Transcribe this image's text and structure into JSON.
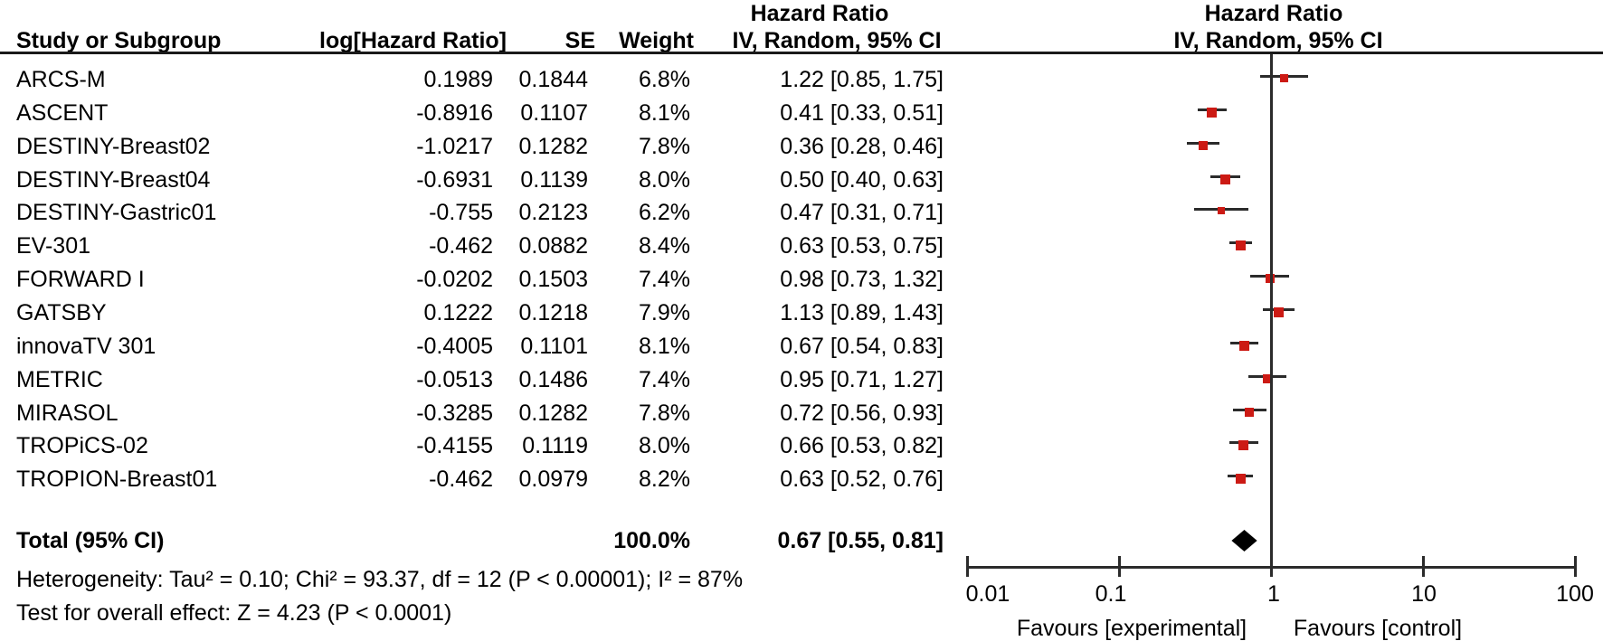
{
  "chart_data": {
    "type": "forest",
    "effect_measure": "Hazard Ratio",
    "model": "IV, Random, 95% CI",
    "columns": {
      "study": "Study or Subgroup",
      "log_hr": "log[Hazard Ratio]",
      "se": "SE",
      "weight": "Weight",
      "ci": "IV, Random, 95% CI",
      "hazard_ratio_header": "Hazard Ratio",
      "plot_header": "Hazard Ratio",
      "plot_subheader": "IV, Random, 95% CI"
    },
    "studies": [
      {
        "name": "ARCS-M",
        "log_hr": "0.1989",
        "se": "0.1844",
        "weight": "6.8%",
        "weight_pct": 6.8,
        "ci_text": "1.22 [0.85, 1.75]",
        "hr": 1.22,
        "lo": 0.85,
        "hi": 1.75
      },
      {
        "name": "ASCENT",
        "log_hr": "-0.8916",
        "se": "0.1107",
        "weight": "8.1%",
        "weight_pct": 8.1,
        "ci_text": "0.41 [0.33, 0.51]",
        "hr": 0.41,
        "lo": 0.33,
        "hi": 0.51
      },
      {
        "name": "DESTINY-Breast02",
        "log_hr": "-1.0217",
        "se": "0.1282",
        "weight": "7.8%",
        "weight_pct": 7.8,
        "ci_text": "0.36 [0.28, 0.46]",
        "hr": 0.36,
        "lo": 0.28,
        "hi": 0.46
      },
      {
        "name": "DESTINY-Breast04",
        "log_hr": "-0.6931",
        "se": "0.1139",
        "weight": "8.0%",
        "weight_pct": 8.0,
        "ci_text": "0.50 [0.40, 0.63]",
        "hr": 0.5,
        "lo": 0.4,
        "hi": 0.63
      },
      {
        "name": "DESTINY-Gastric01",
        "log_hr": "-0.755",
        "se": "0.2123",
        "weight": "6.2%",
        "weight_pct": 6.2,
        "ci_text": "0.47 [0.31, 0.71]",
        "hr": 0.47,
        "lo": 0.31,
        "hi": 0.71
      },
      {
        "name": "EV-301",
        "log_hr": "-0.462",
        "se": "0.0882",
        "weight": "8.4%",
        "weight_pct": 8.4,
        "ci_text": "0.63 [0.53, 0.75]",
        "hr": 0.63,
        "lo": 0.53,
        "hi": 0.75
      },
      {
        "name": "FORWARD I",
        "log_hr": "-0.0202",
        "se": "0.1503",
        "weight": "7.4%",
        "weight_pct": 7.4,
        "ci_text": "0.98 [0.73, 1.32]",
        "hr": 0.98,
        "lo": 0.73,
        "hi": 1.32
      },
      {
        "name": "GATSBY",
        "log_hr": "0.1222",
        "se": "0.1218",
        "weight": "7.9%",
        "weight_pct": 7.9,
        "ci_text": "1.13 [0.89, 1.43]",
        "hr": 1.13,
        "lo": 0.89,
        "hi": 1.43
      },
      {
        "name": "innovaTV 301",
        "log_hr": "-0.4005",
        "se": "0.1101",
        "weight": "8.1%",
        "weight_pct": 8.1,
        "ci_text": "0.67 [0.54, 0.83]",
        "hr": 0.67,
        "lo": 0.54,
        "hi": 0.83
      },
      {
        "name": "METRIC",
        "log_hr": "-0.0513",
        "se": "0.1486",
        "weight": "7.4%",
        "weight_pct": 7.4,
        "ci_text": "0.95 [0.71, 1.27]",
        "hr": 0.95,
        "lo": 0.71,
        "hi": 1.27
      },
      {
        "name": "MIRASOL",
        "log_hr": "-0.3285",
        "se": "0.1282",
        "weight": "7.8%",
        "weight_pct": 7.8,
        "ci_text": "0.72 [0.56, 0.93]",
        "hr": 0.72,
        "lo": 0.56,
        "hi": 0.93
      },
      {
        "name": "TROPiCS-02",
        "log_hr": "-0.4155",
        "se": "0.1119",
        "weight": "8.0%",
        "weight_pct": 8.0,
        "ci_text": "0.66 [0.53, 0.82]",
        "hr": 0.66,
        "lo": 0.53,
        "hi": 0.82
      },
      {
        "name": "TROPION-Breast01",
        "log_hr": "-0.462",
        "se": "0.0979",
        "weight": "8.2%",
        "weight_pct": 8.2,
        "ci_text": "0.63 [0.52, 0.76]",
        "hr": 0.63,
        "lo": 0.52,
        "hi": 0.76
      }
    ],
    "total": {
      "label": "Total (95% CI)",
      "weight": "100.0%",
      "ci_text": "0.67 [0.55, 0.81]",
      "hr": 0.67,
      "lo": 0.55,
      "hi": 0.81
    },
    "heterogeneity": "Heterogeneity: Tau² = 0.10; Chi² = 93.37, df = 12 (P < 0.00001); I² = 87%",
    "overall_effect": "Test for overall effect: Z = 4.23 (P < 0.0001)",
    "axis": {
      "scale": "log",
      "ticks": [
        0.01,
        0.1,
        1,
        10,
        100
      ],
      "tick_labels": [
        "0.01",
        "0.1",
        "1",
        "10",
        "100"
      ],
      "reference_line": 1
    },
    "favours_left": "Favours [experimental]",
    "favours_right": "Favours [control]",
    "colors": {
      "marker": "#cc1a14",
      "line": "#2b2b2b",
      "diamond": "#000000",
      "text": "#000000"
    }
  }
}
